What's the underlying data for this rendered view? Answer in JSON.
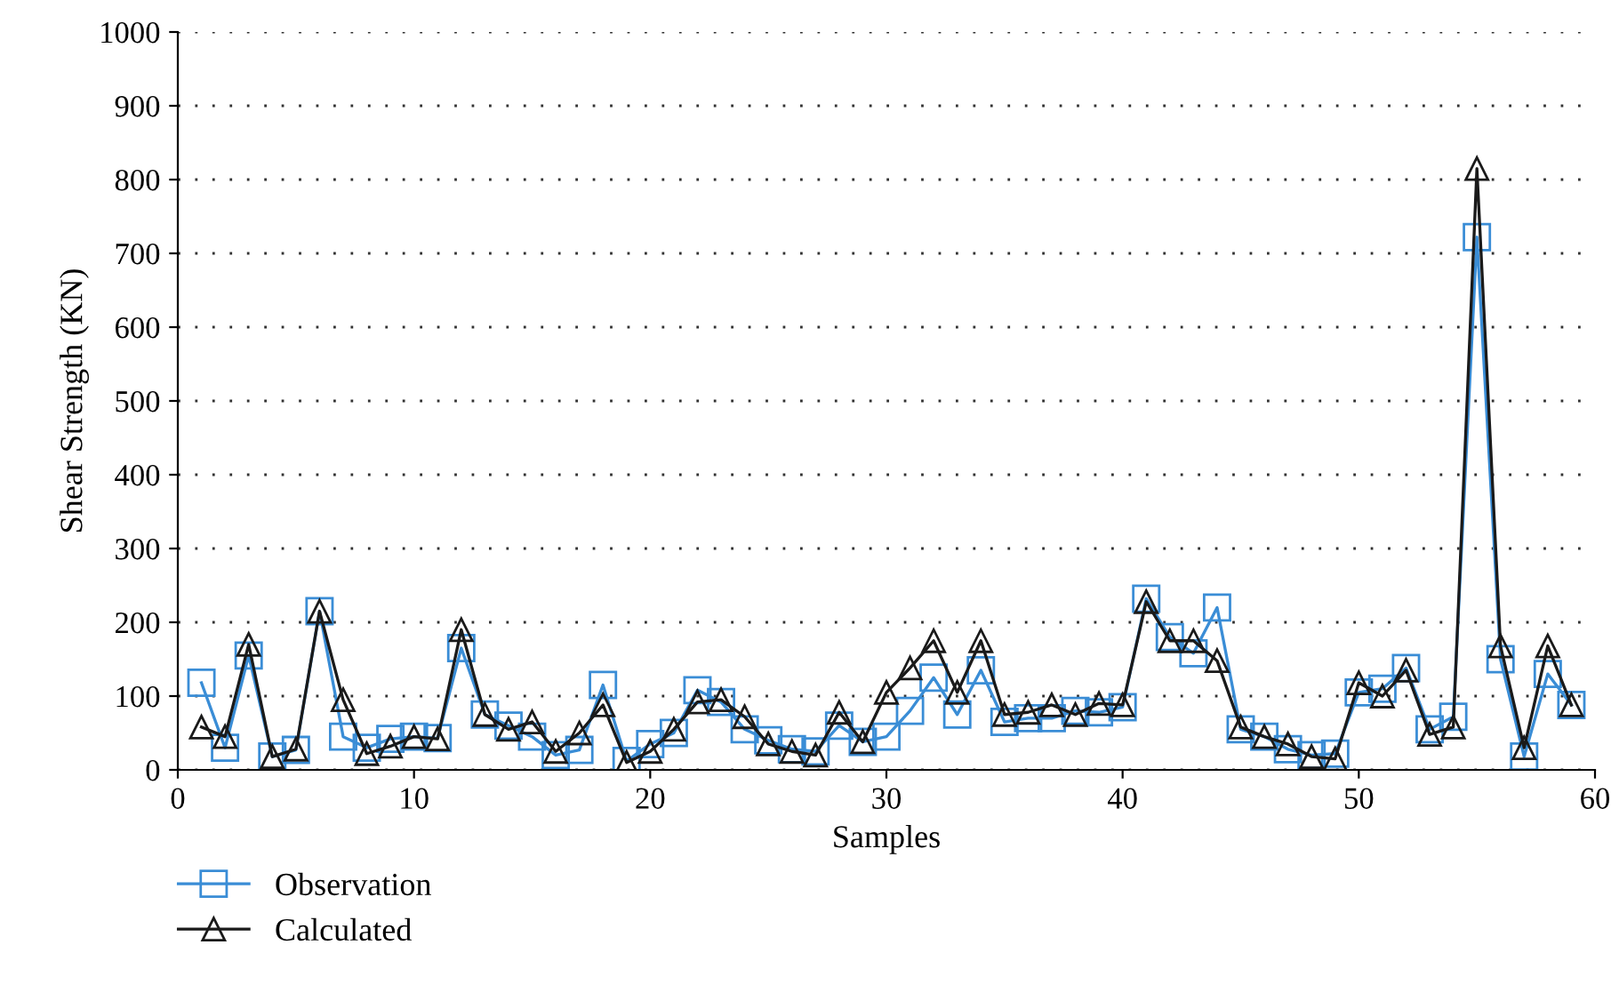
{
  "chart_data": {
    "type": "line",
    "xlabel": "Samples",
    "ylabel": "Shear Strength (KN)",
    "x": [
      1,
      2,
      3,
      4,
      5,
      6,
      7,
      8,
      9,
      10,
      11,
      12,
      13,
      14,
      15,
      16,
      17,
      18,
      19,
      20,
      21,
      22,
      23,
      24,
      25,
      26,
      27,
      28,
      29,
      30,
      31,
      32,
      33,
      34,
      35,
      36,
      37,
      38,
      39,
      40,
      41,
      42,
      43,
      44,
      45,
      46,
      47,
      48,
      49,
      50,
      51,
      52,
      53,
      54,
      55,
      56,
      57,
      58,
      59
    ],
    "series": [
      {
        "name": "Observation",
        "color": "#3a8dd6",
        "marker": "square",
        "values": [
          118,
          30,
          155,
          18,
          27,
          215,
          45,
          30,
          42,
          45,
          43,
          165,
          75,
          60,
          45,
          20,
          27,
          115,
          12,
          35,
          50,
          108,
          92,
          55,
          40,
          28,
          25,
          60,
          38,
          45,
          80,
          125,
          75,
          135,
          65,
          70,
          70,
          80,
          78,
          85,
          232,
          180,
          158,
          220,
          55,
          45,
          28,
          20,
          22,
          105,
          110,
          138,
          55,
          72,
          722,
          150,
          18,
          130,
          88
        ]
      },
      {
        "name": "Calculated",
        "color": "#1a1a1a",
        "marker": "triangle",
        "values": [
          58,
          45,
          170,
          18,
          28,
          215,
          95,
          22,
          32,
          45,
          42,
          190,
          75,
          55,
          65,
          25,
          50,
          88,
          10,
          25,
          55,
          92,
          95,
          72,
          35,
          25,
          20,
          78,
          38,
          105,
          138,
          175,
          105,
          175,
          75,
          78,
          88,
          75,
          90,
          88,
          228,
          175,
          175,
          148,
          58,
          45,
          35,
          18,
          15,
          118,
          100,
          135,
          48,
          58,
          815,
          168,
          30,
          168,
          88
        ]
      }
    ],
    "xlim": [
      0,
      60
    ],
    "xticks": [
      0,
      10,
      20,
      30,
      40,
      50,
      60
    ],
    "ylim": [
      0,
      1000
    ],
    "yticks": [
      0,
      100,
      200,
      300,
      400,
      500,
      600,
      700,
      800,
      900,
      1000
    ],
    "grid": "y",
    "legend": "bottom left",
    "line_style": "solid"
  }
}
